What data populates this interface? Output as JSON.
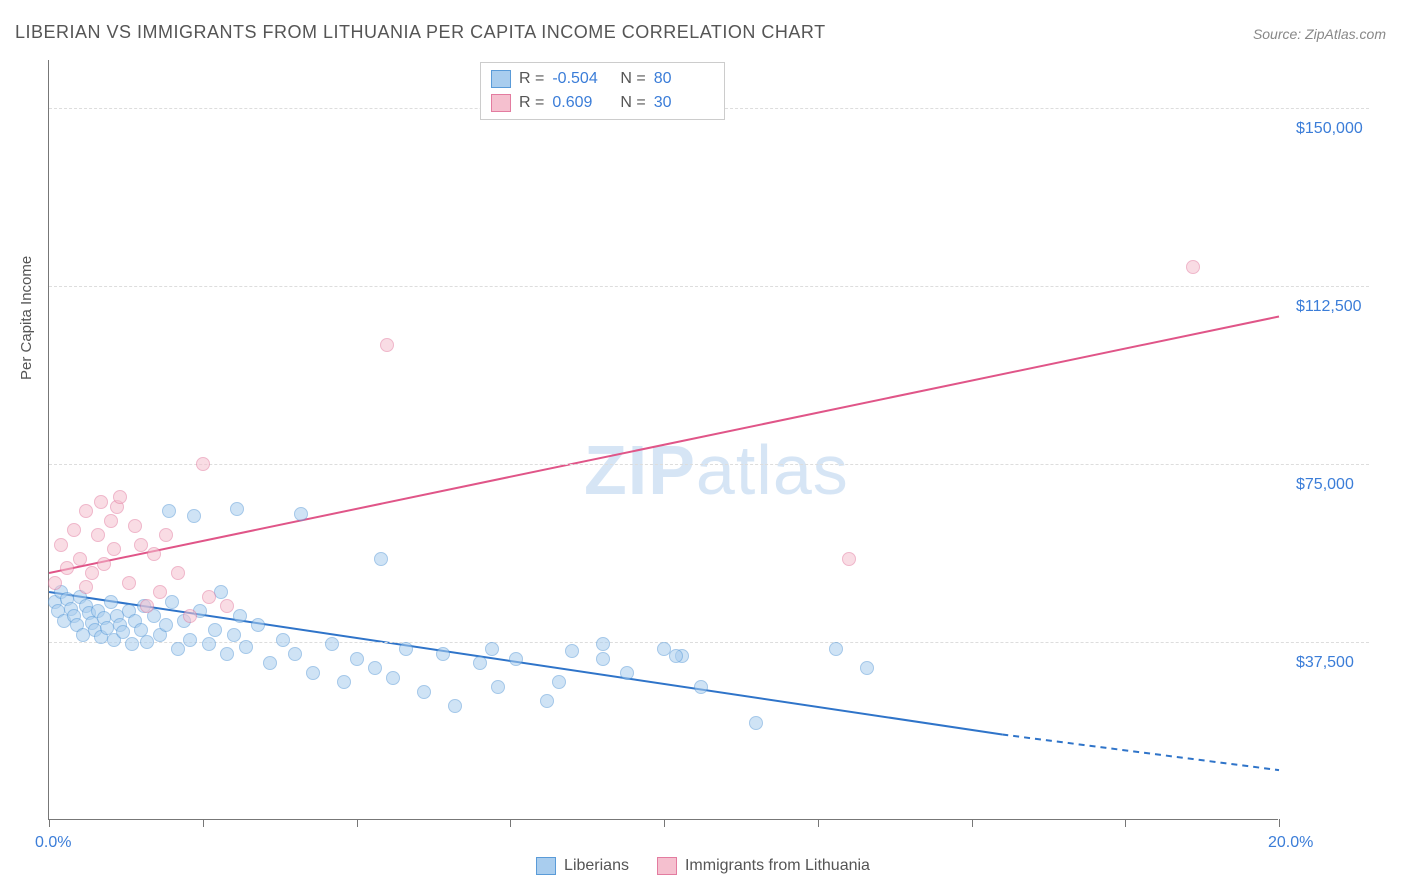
{
  "title": "LIBERIAN VS IMMIGRANTS FROM LITHUANIA PER CAPITA INCOME CORRELATION CHART",
  "source": "Source: ZipAtlas.com",
  "watermark": {
    "bold": "ZIP",
    "light": "atlas"
  },
  "ylabel": "Per Capita Income",
  "chart": {
    "type": "scatter",
    "background_color": "#ffffff",
    "grid_color": "#dddddd",
    "axis_color": "#777777",
    "xlim": [
      0,
      20
    ],
    "ylim": [
      0,
      160000
    ],
    "y_ticks": [
      {
        "value": 37500,
        "label": "$37,500"
      },
      {
        "value": 75000,
        "label": "$75,000"
      },
      {
        "value": 112500,
        "label": "$112,500"
      },
      {
        "value": 150000,
        "label": "$150,000"
      }
    ],
    "x_ticks": [
      0,
      2.5,
      5,
      7.5,
      10,
      12.5,
      15,
      17.5,
      20
    ],
    "x_label_min": "0.0%",
    "x_label_max": "20.0%",
    "marker_size": 14,
    "marker_opacity": 0.55
  },
  "series": [
    {
      "name": "Liberians",
      "color_fill": "#a9cdee",
      "color_stroke": "#5a9bd8",
      "r_value": "-0.504",
      "n_value": "80",
      "trend": {
        "x1": 0,
        "y1": 48000,
        "x2": 15.5,
        "y2": 18000,
        "x3": 20,
        "y3": 10500,
        "dashed_from": 15.5,
        "stroke": "#2f74c9",
        "width": 2
      },
      "points": [
        [
          0.1,
          46000
        ],
        [
          0.15,
          44000
        ],
        [
          0.2,
          48000
        ],
        [
          0.25,
          42000
        ],
        [
          0.3,
          46500
        ],
        [
          0.35,
          44500
        ],
        [
          0.4,
          43000
        ],
        [
          0.45,
          41000
        ],
        [
          0.5,
          47000
        ],
        [
          0.55,
          39000
        ],
        [
          0.6,
          45000
        ],
        [
          0.65,
          43500
        ],
        [
          0.7,
          41500
        ],
        [
          0.75,
          40000
        ],
        [
          0.8,
          44000
        ],
        [
          0.85,
          38500
        ],
        [
          0.9,
          42500
        ],
        [
          0.95,
          40500
        ],
        [
          1.0,
          46000
        ],
        [
          1.05,
          38000
        ],
        [
          1.1,
          43000
        ],
        [
          1.15,
          41000
        ],
        [
          1.2,
          39500
        ],
        [
          1.3,
          44000
        ],
        [
          1.35,
          37000
        ],
        [
          1.4,
          42000
        ],
        [
          1.5,
          40000
        ],
        [
          1.55,
          45000
        ],
        [
          1.6,
          37500
        ],
        [
          1.7,
          43000
        ],
        [
          1.8,
          39000
        ],
        [
          1.9,
          41000
        ],
        [
          2.0,
          46000
        ],
        [
          2.1,
          36000
        ],
        [
          2.2,
          42000
        ],
        [
          2.3,
          38000
        ],
        [
          2.45,
          44000
        ],
        [
          2.6,
          37000
        ],
        [
          2.7,
          40000
        ],
        [
          2.8,
          48000
        ],
        [
          1.95,
          65000
        ],
        [
          2.35,
          64000
        ],
        [
          3.05,
          65500
        ],
        [
          2.9,
          35000
        ],
        [
          3.0,
          39000
        ],
        [
          3.1,
          43000
        ],
        [
          3.2,
          36500
        ],
        [
          3.4,
          41000
        ],
        [
          3.6,
          33000
        ],
        [
          3.8,
          38000
        ],
        [
          4.0,
          35000
        ],
        [
          4.1,
          64500
        ],
        [
          4.3,
          31000
        ],
        [
          4.6,
          37000
        ],
        [
          4.8,
          29000
        ],
        [
          5.0,
          34000
        ],
        [
          5.4,
          55000
        ],
        [
          5.6,
          30000
        ],
        [
          5.3,
          32000
        ],
        [
          5.8,
          36000
        ],
        [
          6.1,
          27000
        ],
        [
          6.4,
          35000
        ],
        [
          6.6,
          24000
        ],
        [
          7.0,
          33000
        ],
        [
          7.3,
          28000
        ],
        [
          7.2,
          36000
        ],
        [
          7.6,
          34000
        ],
        [
          8.1,
          25000
        ],
        [
          8.5,
          35500
        ],
        [
          8.3,
          29000
        ],
        [
          9.0,
          37000
        ],
        [
          9.0,
          34000
        ],
        [
          9.4,
          31000
        ],
        [
          10.0,
          36000
        ],
        [
          10.3,
          34500
        ],
        [
          10.6,
          28000
        ],
        [
          11.5,
          20500
        ],
        [
          12.8,
          36000
        ],
        [
          13.3,
          32000
        ],
        [
          10.2,
          34500
        ]
      ]
    },
    {
      "name": "Immigrants from Lithuania",
      "color_fill": "#f5c0cf",
      "color_stroke": "#e37ca0",
      "r_value": "0.609",
      "n_value": "30",
      "trend": {
        "x1": 0,
        "y1": 52000,
        "x2": 20,
        "y2": 106000,
        "stroke": "#e05588",
        "width": 2
      },
      "points": [
        [
          0.1,
          50000
        ],
        [
          0.2,
          58000
        ],
        [
          0.3,
          53000
        ],
        [
          0.4,
          61000
        ],
        [
          0.5,
          55000
        ],
        [
          0.6,
          49000
        ],
        [
          0.6,
          65000
        ],
        [
          0.7,
          52000
        ],
        [
          0.8,
          60000
        ],
        [
          0.85,
          67000
        ],
        [
          0.9,
          54000
        ],
        [
          1.0,
          63000
        ],
        [
          1.05,
          57000
        ],
        [
          1.1,
          66000
        ],
        [
          1.15,
          68000
        ],
        [
          1.3,
          50000
        ],
        [
          1.4,
          62000
        ],
        [
          1.5,
          58000
        ],
        [
          1.6,
          45000
        ],
        [
          1.7,
          56000
        ],
        [
          1.8,
          48000
        ],
        [
          1.9,
          60000
        ],
        [
          2.1,
          52000
        ],
        [
          2.3,
          43000
        ],
        [
          2.6,
          47000
        ],
        [
          2.9,
          45000
        ],
        [
          2.5,
          75000
        ],
        [
          5.5,
          100000
        ],
        [
          13.0,
          55000
        ],
        [
          18.6,
          116500
        ]
      ]
    }
  ],
  "legend": {
    "r_label": "R =",
    "n_label": "N ="
  },
  "bottom_legend": {
    "items": [
      "Liberians",
      "Immigrants from Lithuania"
    ]
  }
}
